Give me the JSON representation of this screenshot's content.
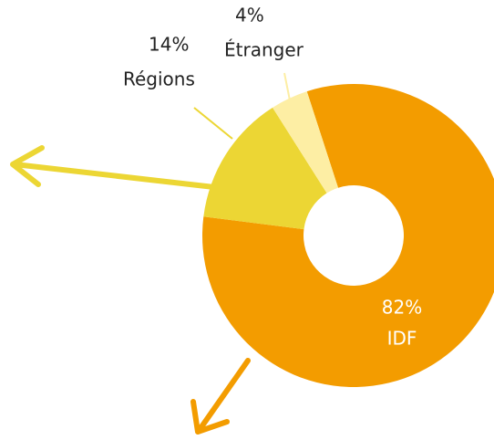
{
  "chart_data": {
    "type": "pie",
    "categories": [
      "IDF",
      "Régions",
      "Étranger"
    ],
    "values": [
      82,
      14,
      4
    ],
    "value_labels": [
      "82%",
      "14%",
      "4%"
    ],
    "colors": [
      "#f39c00",
      "#ecd634",
      "#fdeea4"
    ]
  }
}
